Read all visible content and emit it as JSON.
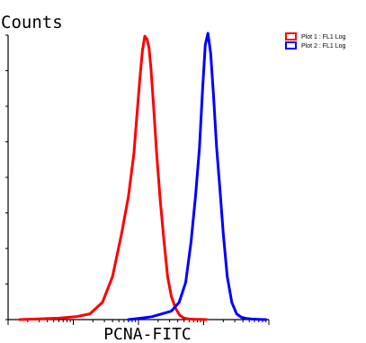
{
  "chart_data": {
    "type": "line",
    "ylabel": "Counts",
    "xlabel": "PCNA-FITC",
    "x_scale": "log",
    "xlim": [
      1,
      10000
    ],
    "ylim": [
      0,
      1
    ],
    "grid": false,
    "legend_position": "top-right",
    "x_tick_labels": [],
    "y_tick_labels": [],
    "series": [
      {
        "name": "Plot 1 : FL1 Log",
        "color": "#ff0000",
        "x": [
          1.5,
          6,
          11,
          18,
          28,
          40,
          55,
          70,
          85,
          95,
          105,
          115,
          125,
          135,
          145,
          155,
          170,
          190,
          215,
          245,
          280,
          320,
          370,
          430,
          500,
          600,
          750,
          900,
          1100
        ],
        "y": [
          0,
          0.005,
          0.01,
          0.02,
          0.06,
          0.15,
          0.3,
          0.43,
          0.58,
          0.72,
          0.84,
          0.94,
          0.99,
          0.98,
          0.95,
          0.88,
          0.75,
          0.58,
          0.42,
          0.28,
          0.15,
          0.08,
          0.04,
          0.015,
          0.005,
          0.002,
          0.001,
          0.0005,
          0
        ]
      },
      {
        "name": "Plot 2 : FL1 Log",
        "color": "#0000ff",
        "x": [
          70,
          110,
          160,
          230,
          320,
          420,
          530,
          640,
          750,
          860,
          960,
          1060,
          1160,
          1280,
          1420,
          1580,
          1780,
          2000,
          2300,
          2700,
          3200,
          3800,
          4500,
          5500,
          7000,
          9000
        ],
        "y": [
          0,
          0.005,
          0.01,
          0.02,
          0.03,
          0.06,
          0.13,
          0.27,
          0.43,
          0.6,
          0.8,
          0.96,
          1.0,
          0.93,
          0.78,
          0.6,
          0.45,
          0.3,
          0.15,
          0.06,
          0.02,
          0.008,
          0.004,
          0.002,
          0.001,
          0
        ]
      }
    ]
  }
}
